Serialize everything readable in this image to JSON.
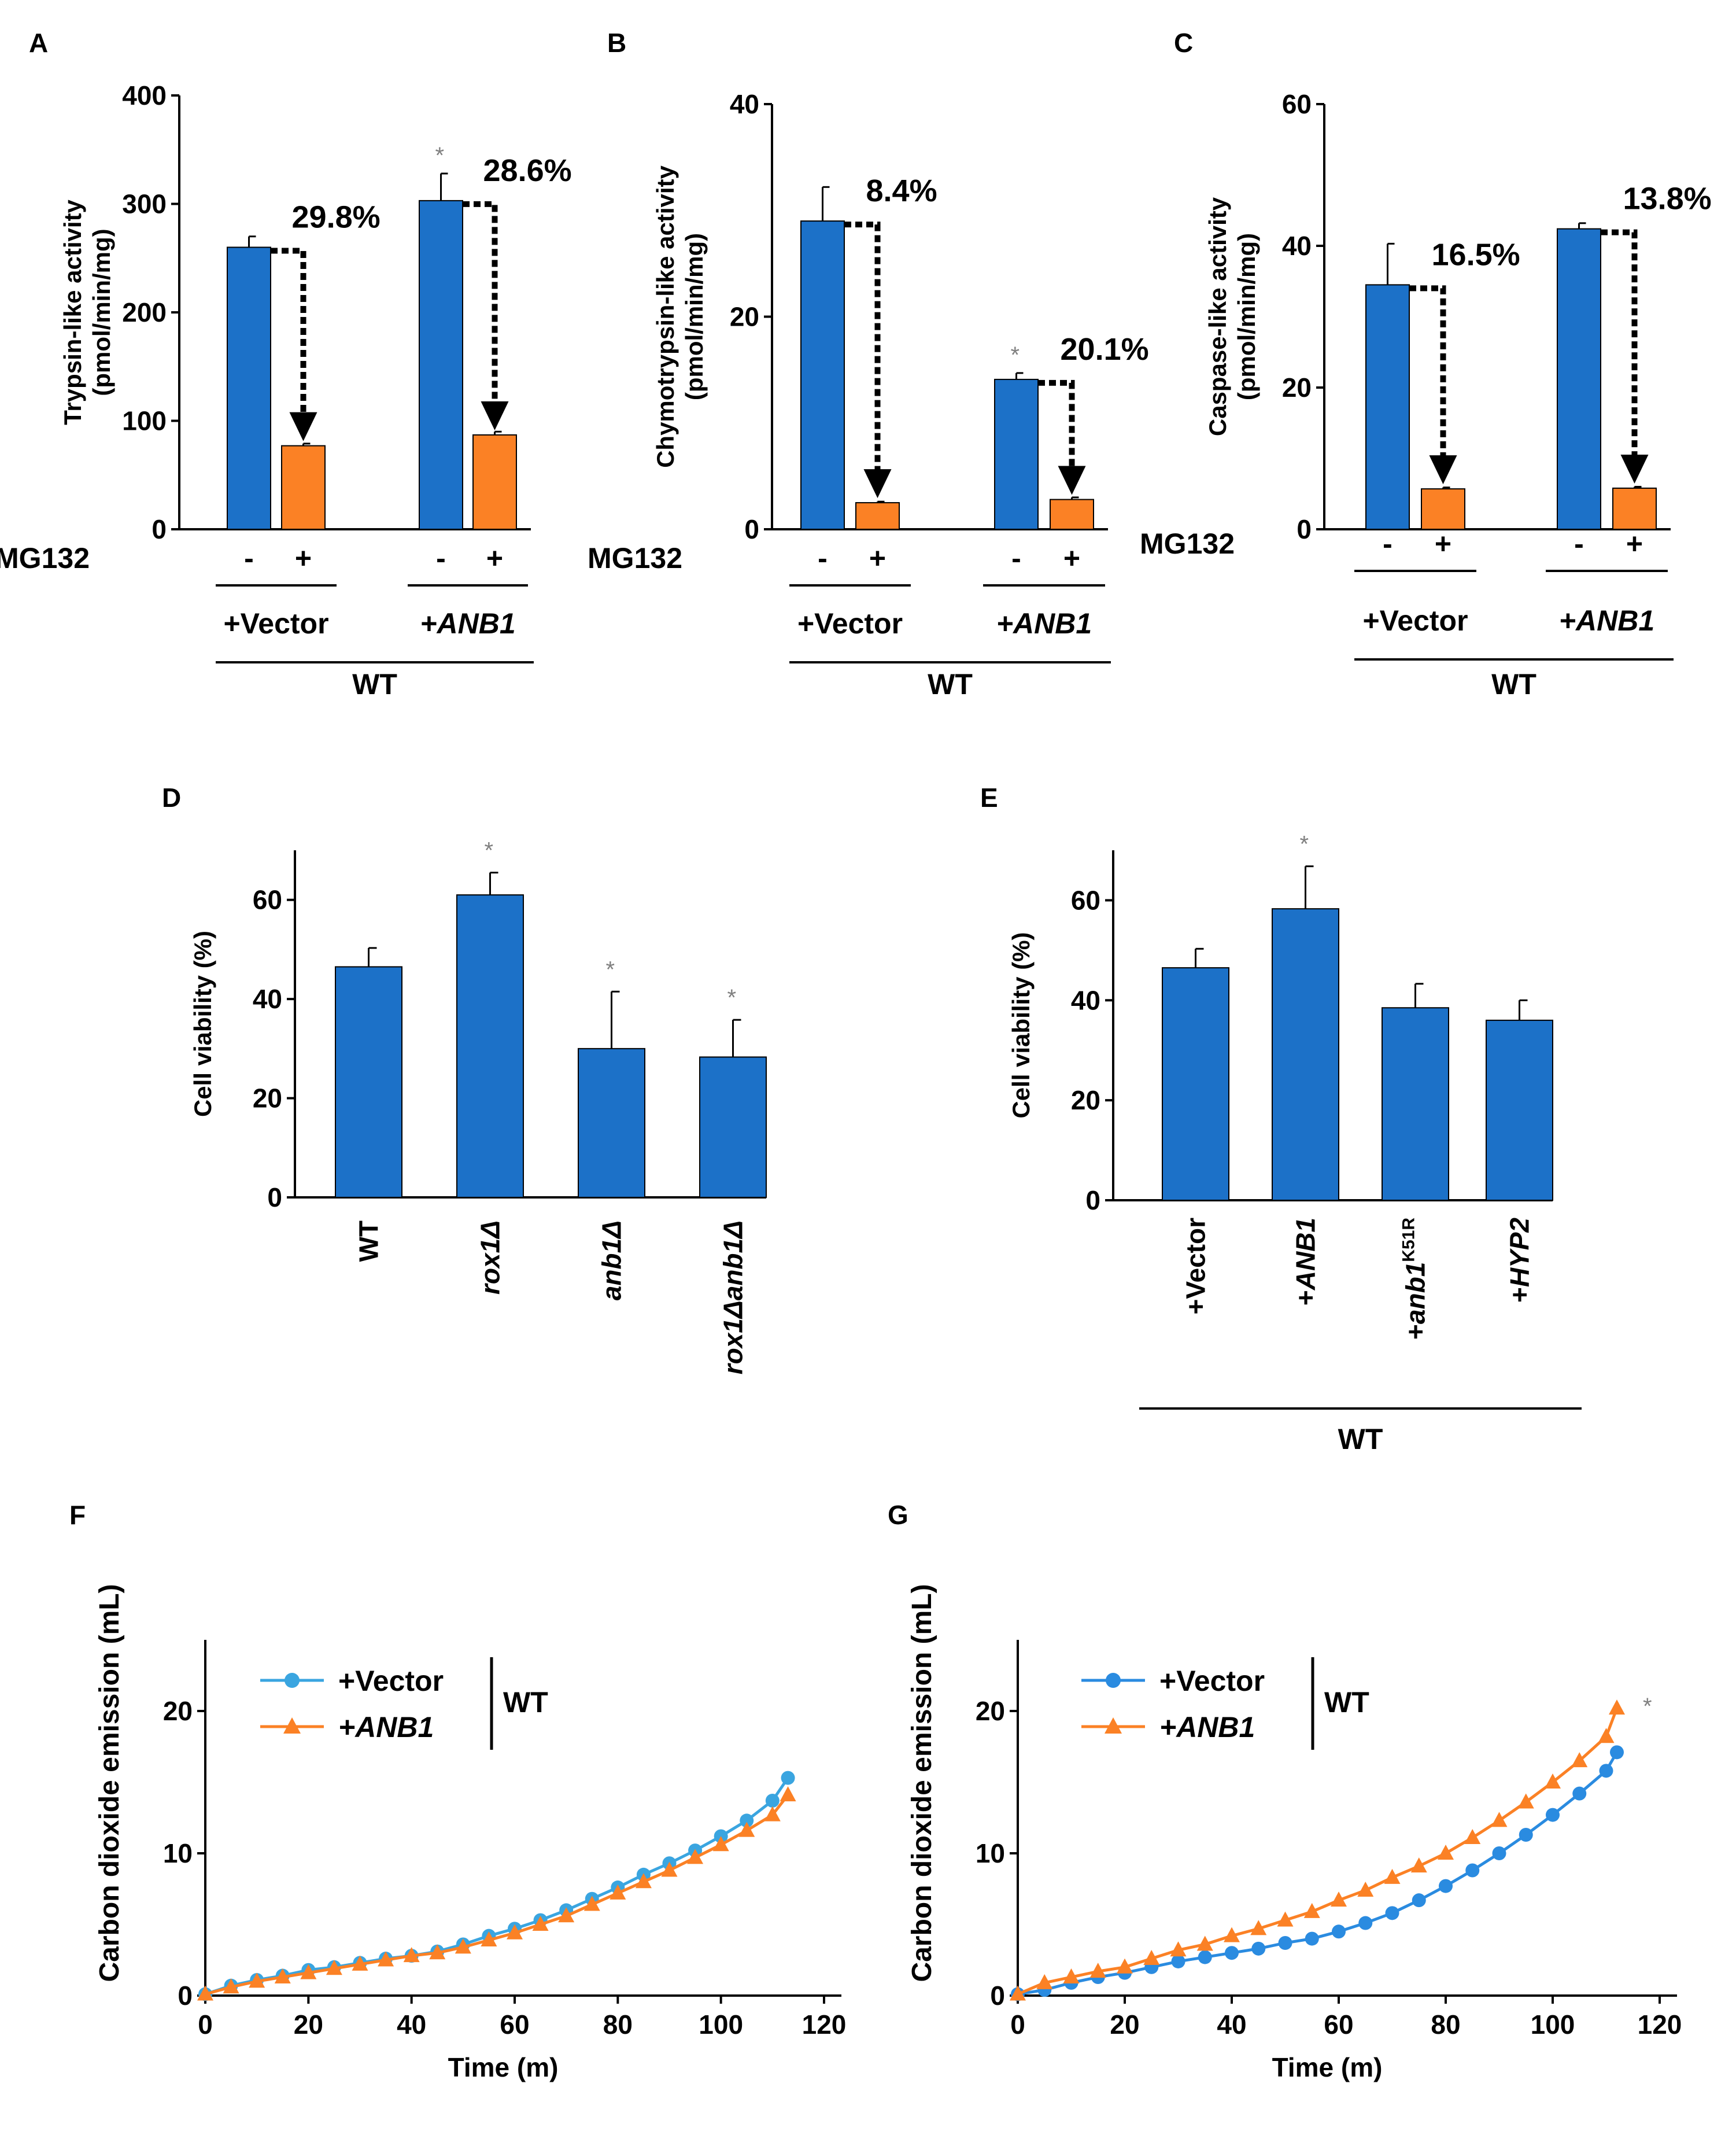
{
  "colors": {
    "blue": "#1c71c8",
    "orange": "#fb8125",
    "line_blue": "#3aa5e0",
    "marker_blue": "#2a8be0",
    "star": "#808080"
  },
  "chart_data": [
    {
      "panel": "A",
      "type": "bar",
      "ylabel": "Trypsin-like activity",
      "ylabel2": "(pmol/min/mg)",
      "ylim": [
        0,
        400
      ],
      "yticks": [
        0,
        100,
        200,
        300,
        400
      ],
      "mg132_label": "MG132",
      "mg132_signs": [
        "-",
        "+",
        "-",
        "+"
      ],
      "groups": [
        "+Vector",
        "+ANB1"
      ],
      "group_italic": [
        false,
        true
      ],
      "strain": "WT",
      "bars": [
        {
          "value": 260,
          "err": 10,
          "color": "blue"
        },
        {
          "value": 77,
          "err": 2,
          "color": "orange"
        },
        {
          "value": 303,
          "err": 25,
          "color": "blue",
          "star": "*"
        },
        {
          "value": 87,
          "err": 3,
          "color": "orange"
        }
      ],
      "percents": [
        "29.8%",
        "28.6%"
      ]
    },
    {
      "panel": "B",
      "type": "bar",
      "ylabel": "Chymotrypsin-like activity",
      "ylabel2": "(pmol/min/mg)",
      "ylim": [
        0,
        40
      ],
      "yticks": [
        0,
        20,
        40
      ],
      "mg132_label": "MG132",
      "mg132_signs": [
        "-",
        "+",
        "-",
        "+"
      ],
      "groups": [
        "+Vector",
        "+ANB1"
      ],
      "group_italic": [
        false,
        true
      ],
      "strain": "WT",
      "bars": [
        {
          "value": 29,
          "err": 3.2,
          "color": "blue"
        },
        {
          "value": 2.5,
          "err": 0.1,
          "color": "orange"
        },
        {
          "value": 14.1,
          "err": 0.6,
          "color": "blue",
          "star": "*"
        },
        {
          "value": 2.8,
          "err": 0.2,
          "color": "orange"
        }
      ],
      "percents": [
        "8.4%",
        "20.1%"
      ]
    },
    {
      "panel": "C",
      "type": "bar",
      "ylabel": "Caspase-like activity",
      "ylabel2": "(pmol/min/mg)",
      "ylim": [
        0,
        60
      ],
      "yticks": [
        0,
        20,
        40,
        60
      ],
      "mg132_label": "MG132",
      "mg132_signs": [
        "-",
        "+",
        "-",
        "+"
      ],
      "groups": [
        "+Vector",
        "+ANB1"
      ],
      "group_italic": [
        false,
        true
      ],
      "strain": "WT",
      "bars": [
        {
          "value": 34.5,
          "err": 5.8,
          "color": "blue"
        },
        {
          "value": 5.7,
          "err": 0.2,
          "color": "orange"
        },
        {
          "value": 42.4,
          "err": 0.8,
          "color": "blue"
        },
        {
          "value": 5.8,
          "err": 0.2,
          "color": "orange"
        }
      ],
      "percents": [
        "16.5%",
        "13.8%"
      ]
    },
    {
      "panel": "D",
      "type": "bar",
      "ylabel": "Cell viability (%)",
      "ylim": [
        0,
        70
      ],
      "yticks": [
        0,
        20,
        40,
        60
      ],
      "categories": [
        "WT",
        "rox1Δ",
        "anb1Δ",
        "rox1Δanb1Δ"
      ],
      "category_italic": [
        false,
        true,
        true,
        true
      ],
      "values": [
        46.5,
        61,
        30,
        28.3
      ],
      "errors": [
        3.8,
        4.5,
        11.5,
        7.5
      ],
      "stars": [
        "",
        "*",
        "*",
        "*"
      ]
    },
    {
      "panel": "E",
      "type": "bar",
      "ylabel": "Cell viability (%)",
      "ylim": [
        0,
        70
      ],
      "yticks": [
        0,
        20,
        40,
        60
      ],
      "categories": [
        {
          "pre": "+",
          "main": "Vector",
          "sup": "",
          "italic": false
        },
        {
          "pre": "+",
          "main": "ANB1",
          "sup": "",
          "italic": true
        },
        {
          "pre": "+",
          "main": "anb1",
          "sup": "K51R",
          "italic": true
        },
        {
          "pre": "+",
          "main": "HYP2",
          "sup": "",
          "italic": true
        }
      ],
      "values": [
        46.5,
        58.3,
        38.5,
        36
      ],
      "errors": [
        3.8,
        8.5,
        4.8,
        4
      ],
      "stars": [
        "",
        "*",
        "",
        ""
      ],
      "strain": "WT"
    },
    {
      "panel": "F",
      "type": "line",
      "ylabel": "Carbon dioxide emission (mL)",
      "xlabel": "Time (m)",
      "xlim": [
        0,
        120
      ],
      "ylim": [
        0,
        25
      ],
      "xticks": [
        0,
        20,
        40,
        60,
        80,
        100,
        120
      ],
      "yticks": [
        0,
        10,
        20
      ],
      "x": [
        0,
        5,
        10,
        15,
        20,
        25,
        30,
        35,
        40,
        45,
        50,
        55,
        60,
        65,
        70,
        75,
        80,
        85,
        90,
        95,
        100,
        105,
        110,
        113
      ],
      "series": [
        {
          "name": "+Vector",
          "italic": false,
          "color": "line_blue",
          "marker": "circle",
          "values": [
            0.1,
            0.7,
            1.1,
            1.4,
            1.8,
            2.0,
            2.3,
            2.6,
            2.8,
            3.1,
            3.6,
            4.2,
            4.7,
            5.3,
            6.0,
            6.8,
            7.6,
            8.5,
            9.3,
            10.2,
            11.2,
            12.3,
            13.7,
            15.3
          ]
        },
        {
          "name": "+ANB1",
          "italic": true,
          "color": "orange",
          "marker": "triangle",
          "values": [
            0.1,
            0.6,
            1.0,
            1.3,
            1.6,
            1.9,
            2.2,
            2.5,
            2.8,
            3.0,
            3.4,
            3.9,
            4.4,
            5.0,
            5.6,
            6.4,
            7.2,
            8.0,
            8.8,
            9.7,
            10.6,
            11.6,
            12.7,
            14.1
          ]
        }
      ],
      "legend_group": "WT"
    },
    {
      "panel": "G",
      "type": "line",
      "ylabel": "Carbon dioxide emission (mL)",
      "xlabel": "Time (m)",
      "xlim": [
        0,
        120
      ],
      "ylim": [
        0,
        25
      ],
      "xticks": [
        0,
        20,
        40,
        60,
        80,
        100,
        120
      ],
      "yticks": [
        0,
        10,
        20
      ],
      "x": [
        0,
        5,
        10,
        15,
        20,
        25,
        30,
        35,
        40,
        45,
        50,
        55,
        60,
        65,
        70,
        75,
        80,
        85,
        90,
        95,
        100,
        105,
        110,
        112
      ],
      "series": [
        {
          "name": "+Vector",
          "italic": false,
          "color": "marker_blue",
          "marker": "circle",
          "values": [
            0.1,
            0.4,
            0.9,
            1.3,
            1.6,
            2.0,
            2.4,
            2.7,
            3.0,
            3.3,
            3.7,
            4.0,
            4.5,
            5.1,
            5.8,
            6.7,
            7.7,
            8.8,
            10.0,
            11.3,
            12.7,
            14.2,
            15.8,
            17.1
          ]
        },
        {
          "name": "+ANB1",
          "italic": true,
          "color": "orange",
          "marker": "triangle",
          "values": [
            0.1,
            0.9,
            1.3,
            1.7,
            2.0,
            2.6,
            3.2,
            3.6,
            4.2,
            4.7,
            5.3,
            5.9,
            6.7,
            7.4,
            8.3,
            9.1,
            10.0,
            11.1,
            12.3,
            13.6,
            15.0,
            16.5,
            18.2,
            20.2
          ]
        }
      ],
      "legend_group": "WT",
      "end_star": "*"
    }
  ]
}
